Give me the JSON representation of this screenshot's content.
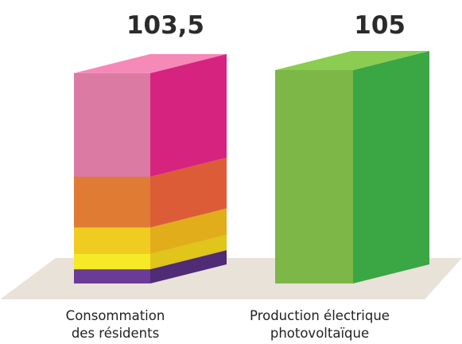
{
  "chart_data": {
    "type": "bar",
    "stacked": true,
    "style": "3d",
    "categories": [
      [
        "Consommation",
        "des résidents"
      ],
      [
        "Production électrique",
        "photovoltaïque"
      ]
    ],
    "totals_labels": [
      "103,5",
      "105"
    ],
    "totals": [
      103.5,
      105
    ],
    "segments": [
      [
        {
          "value": 7.0,
          "front": "#6a3b97",
          "side": "#4f2c75"
        },
        {
          "value": 7.5,
          "front": "#f6ea27",
          "side": "#e0c51a"
        },
        {
          "value": 13.0,
          "front": "#f1cc20",
          "side": "#e2ad1b"
        },
        {
          "value": 25.0,
          "front": "#e07b34",
          "side": "#dc5c38"
        },
        {
          "value": 51.0,
          "front": "#db7aa3",
          "side": "#d6237f"
        }
      ],
      [
        {
          "value": 105,
          "front": "#7cb748",
          "side": "#3aa644"
        }
      ]
    ],
    "floor_color": "#e9e2d9",
    "top_color_adjust": 1.12
  }
}
